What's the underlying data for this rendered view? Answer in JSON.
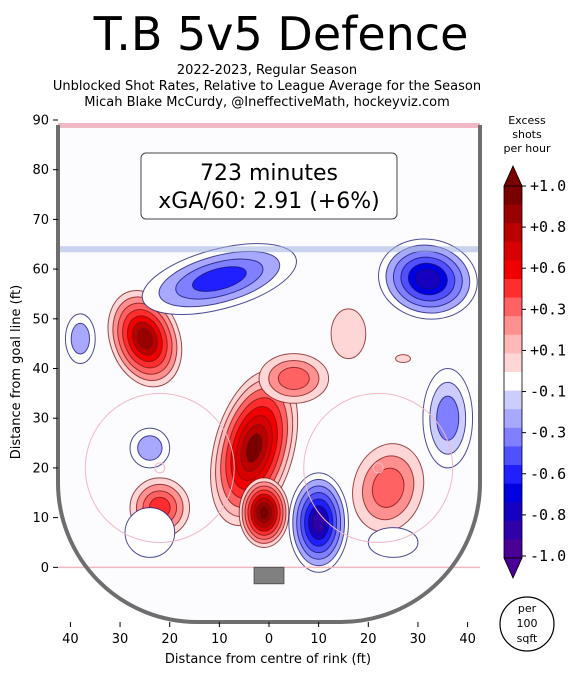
{
  "chart_data": {
    "type": "heatmap",
    "title": "T.B 5v5 Defence",
    "subtitle_lines": [
      "2022-2023, Regular Season",
      "Unblocked Shot Rates, Relative to League Average for the Season",
      "Micah Blake McCurdy, @IneffectiveMath, hockeyviz.com"
    ],
    "xlabel": "Distance from centre of rink (ft)",
    "ylabel": "Distance from goal line (ft)",
    "x_ticks": [
      {
        "value": -40,
        "label": "40"
      },
      {
        "value": -30,
        "label": "30"
      },
      {
        "value": -20,
        "label": "20"
      },
      {
        "value": -10,
        "label": "10"
      },
      {
        "value": 0,
        "label": "0"
      },
      {
        "value": 10,
        "label": "10"
      },
      {
        "value": 20,
        "label": "20"
      },
      {
        "value": 30,
        "label": "30"
      },
      {
        "value": 40,
        "label": "40"
      }
    ],
    "y_ticks": [
      0,
      10,
      20,
      30,
      40,
      50,
      60,
      70,
      80,
      90
    ],
    "xlim": [
      -42.5,
      42.5
    ],
    "ylim": [
      -11,
      90
    ],
    "annotation_lines": [
      "723 minutes",
      "xGA/60: 2.91 (+6%)"
    ],
    "colorbar": {
      "title_lines": [
        "Excess",
        "shots",
        "per hour"
      ],
      "tick_labels": [
        "+1.0",
        "+0.8",
        "+0.6",
        "+0.3",
        "+0.1",
        "-0.1",
        "-0.3",
        "-0.6",
        "-0.8",
        "-1.0"
      ],
      "unit_lines": [
        "per",
        "100",
        "sqft"
      ],
      "colors_top_to_bottom": [
        "#7a0000",
        "#990000",
        "#bb0000",
        "#d80000",
        "#f00000",
        "#ff2d2d",
        "#ff6262",
        "#ff9090",
        "#ffb8b8",
        "#ffd6d6",
        "#ffffff",
        "#ccccff",
        "#a8a8ff",
        "#7f7fff",
        "#5050ff",
        "#2020ff",
        "#0000e0",
        "#1800c0",
        "#3000a8",
        "#4a0095"
      ]
    },
    "blobs": [
      {
        "x": -25,
        "y": 46,
        "value": 0.85,
        "rx": 7,
        "ry": 10,
        "rot": -20
      },
      {
        "x": -3,
        "y": 24,
        "value": 0.9,
        "rx": 8,
        "ry": 16,
        "rot": 15
      },
      {
        "x": -1,
        "y": 11,
        "value": 1.0,
        "rx": 5,
        "ry": 7,
        "rot": 0
      },
      {
        "x": -22,
        "y": 12,
        "value": 0.45,
        "rx": 6,
        "ry": 6,
        "rot": 0
      },
      {
        "x": 5,
        "y": 38,
        "value": 0.35,
        "rx": 7,
        "ry": 5,
        "rot": 0
      },
      {
        "x": 24,
        "y": 16,
        "value": 0.35,
        "rx": 7,
        "ry": 9,
        "rot": 15
      },
      {
        "x": 16,
        "y": 47,
        "value": 0.15,
        "rx": 3.5,
        "ry": 5,
        "rot": 0
      },
      {
        "x": 27,
        "y": 42,
        "value": 0.1,
        "rx": 1.5,
        "ry": 0.8,
        "rot": 0
      },
      {
        "x": -10,
        "y": 58,
        "value": -0.5,
        "rx": 16,
        "ry": 6,
        "rot": -15
      },
      {
        "x": 32,
        "y": 58,
        "value": -0.75,
        "rx": 10,
        "ry": 8,
        "rot": 10
      },
      {
        "x": 10,
        "y": 9,
        "value": -0.85,
        "rx": 6,
        "ry": 10,
        "rot": 0
      },
      {
        "x": -38,
        "y": 46,
        "value": -0.2,
        "rx": 3,
        "ry": 5,
        "rot": 0
      },
      {
        "x": -24,
        "y": 24,
        "value": -0.2,
        "rx": 4,
        "ry": 4,
        "rot": 0
      },
      {
        "x": 36,
        "y": 30,
        "value": -0.3,
        "rx": 5,
        "ry": 10,
        "rot": 0
      },
      {
        "x": -24,
        "y": 7,
        "value": -0.15,
        "rx": 5,
        "ry": 5,
        "rot": 0
      },
      {
        "x": 25,
        "y": 5,
        "value": -0.15,
        "rx": 5,
        "ry": 3,
        "rot": 0
      }
    ]
  }
}
